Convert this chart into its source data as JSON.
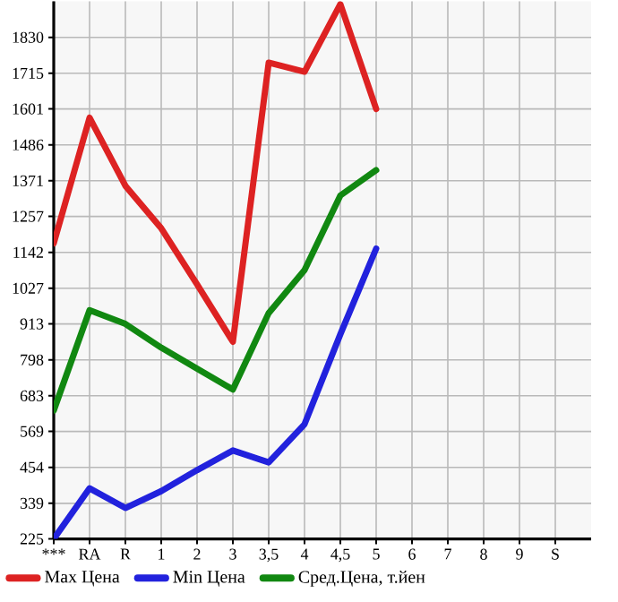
{
  "chart_data": {
    "type": "line",
    "categories": [
      "***",
      "RA",
      "R",
      "1",
      "2",
      "3",
      "3,5",
      "4",
      "4,5",
      "5",
      "6",
      "7",
      "8",
      "9",
      "S"
    ],
    "series": [
      {
        "name": "Max Цена",
        "color": "#dd2222",
        "values": [
          1171,
          1573,
          1355,
          1219,
          1040,
          856,
          1749,
          1720,
          1936,
          1601,
          null,
          null,
          null,
          null,
          null
        ]
      },
      {
        "name": "Min Цена",
        "color": "#2222dd",
        "values": [
          225,
          387,
          324,
          378,
          445,
          508,
          470,
          592,
          880,
          1154,
          null,
          null,
          null,
          null,
          null
        ]
      },
      {
        "name": "Сред.Цена, т.йен",
        "color": "#118811",
        "values": [
          636,
          957,
          913,
          837,
          770,
          703,
          948,
          1085,
          1324,
          1405,
          null,
          null,
          null,
          null,
          null
        ]
      }
    ],
    "ylim": [
      225,
      1945
    ],
    "yticks": [
      225,
      339,
      454,
      569,
      683,
      798,
      913,
      1027,
      1142,
      1257,
      1371,
      1486,
      1601,
      1715,
      1830
    ],
    "grid": true,
    "legend": "bottom",
    "marker": "none",
    "line_style": "solid"
  }
}
